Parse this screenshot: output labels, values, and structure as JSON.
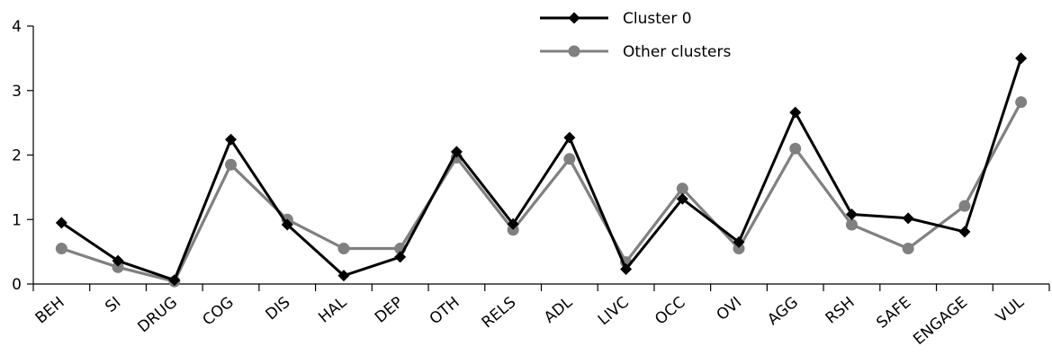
{
  "chart_data": {
    "type": "line",
    "title": "",
    "xlabel": "",
    "ylabel": "",
    "ylim": [
      0,
      4
    ],
    "yticks": [
      0,
      1,
      2,
      3,
      4
    ],
    "grid": false,
    "legend_position": "top-right",
    "categories": [
      "BEH",
      "SI",
      "DRUG",
      "COG",
      "DIS",
      "HAL",
      "DEP",
      "OTH",
      "RELS",
      "ADL",
      "LIVC",
      "OCC",
      "OVI",
      "AGG",
      "RSH",
      "SAFE",
      "ENGAGE",
      "VUL"
    ],
    "series": [
      {
        "name": "Cluster 0",
        "color": "#000000",
        "marker": "diamond",
        "values": [
          0.95,
          0.36,
          0.06,
          2.24,
          0.92,
          0.13,
          0.42,
          2.05,
          0.93,
          2.27,
          0.23,
          1.32,
          0.65,
          2.66,
          1.08,
          1.02,
          0.81,
          3.5
        ]
      },
      {
        "name": "Other clusters",
        "color": "#808080",
        "marker": "circle",
        "values": [
          0.55,
          0.26,
          0.04,
          1.85,
          1.0,
          0.55,
          0.55,
          1.96,
          0.84,
          1.94,
          0.34,
          1.48,
          0.55,
          2.1,
          0.92,
          0.55,
          1.21,
          2.82
        ]
      }
    ]
  }
}
